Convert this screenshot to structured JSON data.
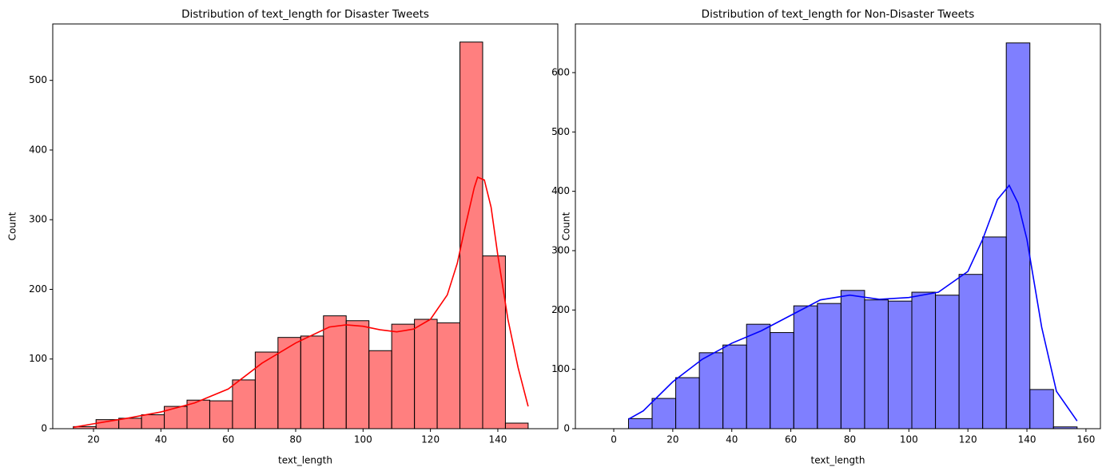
{
  "chart_data": [
    {
      "type": "histogram",
      "title": "Distribution of text_length for Disaster Tweets",
      "x_label": "text_length",
      "y_label": "Count",
      "color": "red",
      "bins": [
        14,
        20.75,
        27.5,
        34.25,
        41,
        47.75,
        54.5,
        61.25,
        68,
        74.75,
        81.5,
        88.25,
        95,
        101.75,
        108.5,
        115.25,
        122,
        128.75,
        135.5,
        142.25,
        149
      ],
      "values": [
        3,
        13,
        15,
        20,
        32,
        41,
        40,
        70,
        110,
        131,
        133,
        162,
        155,
        112,
        150,
        157,
        152,
        555,
        248,
        8
      ],
      "kde": {
        "x": [
          14,
          20,
          30,
          40,
          50,
          60,
          70,
          80,
          90,
          95,
          100,
          105,
          110,
          115,
          120,
          125,
          128,
          130,
          133,
          134,
          136,
          138,
          140,
          143,
          146,
          149
        ],
        "values": [
          2,
          7,
          15,
          24,
          37,
          57,
          94,
          123,
          146,
          149,
          147,
          142,
          139,
          143,
          157,
          192,
          238,
          283,
          346,
          361,
          357,
          318,
          249,
          157,
          88,
          32
        ]
      },
      "xlim": [
        7.9,
        157.8
      ],
      "ylim": [
        0,
        581
      ],
      "xticks": [
        20,
        40,
        60,
        80,
        100,
        120,
        140
      ],
      "yticks": [
        0,
        100,
        200,
        300,
        400,
        500
      ]
    },
    {
      "type": "histogram",
      "title": "Distribution of text_length for Non-Disaster Tweets",
      "x_label": "text_length",
      "y_label": "Count",
      "color": "blue",
      "bins": [
        5,
        13,
        21,
        29,
        37,
        45,
        53,
        61,
        69,
        77,
        85,
        93,
        101,
        109,
        117,
        125,
        133,
        141,
        149,
        157
      ],
      "values": [
        17,
        51,
        86,
        128,
        141,
        176,
        162,
        207,
        211,
        233,
        217,
        215,
        230,
        225,
        260,
        323,
        650,
        66,
        3
      ],
      "kde": {
        "x": [
          5,
          10,
          20,
          30,
          40,
          50,
          60,
          70,
          80,
          90,
          100,
          110,
          120,
          125,
          130,
          134,
          137,
          140,
          145,
          150,
          157
        ],
        "values": [
          16,
          30,
          79,
          117,
          144,
          165,
          191,
          217,
          225,
          218,
          221,
          230,
          265,
          319,
          386,
          410,
          380,
          319,
          171,
          63,
          13
        ]
      },
      "xlim": [
        -13,
        164.9
      ],
      "ylim": [
        0,
        682
      ],
      "xticks": [
        0,
        20,
        40,
        60,
        80,
        100,
        120,
        140,
        160
      ],
      "yticks": [
        0,
        100,
        200,
        300,
        400,
        500,
        600
      ]
    }
  ]
}
